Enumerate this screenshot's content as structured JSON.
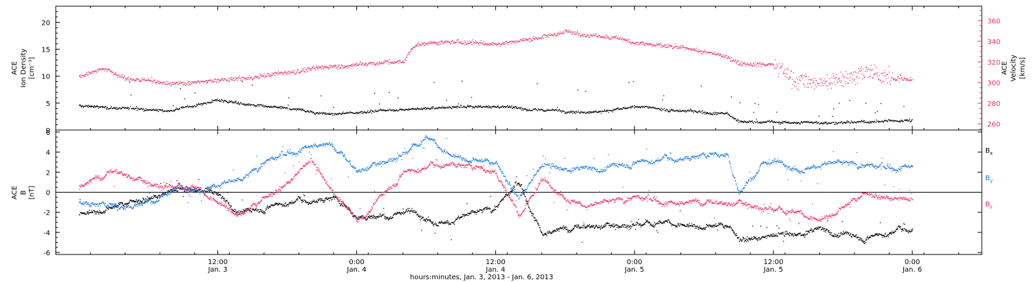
{
  "chart_data": [
    {
      "type": "scatter",
      "panel": "ion-density-velocity",
      "ylabel_left": [
        "ACE",
        "Ion Density",
        "[cm⁻³]"
      ],
      "ylabel_right": [
        "ACE",
        "Velocity",
        "[km/s]"
      ],
      "yticks_left": [
        "0",
        "5",
        "10",
        "15",
        "20"
      ],
      "ylim_left": [
        0,
        23
      ],
      "yticks_right": [
        "260",
        "280",
        "300",
        "320",
        "340",
        "360"
      ],
      "ylim_right": [
        254,
        374
      ],
      "left_axis_color": "#000000",
      "right_axis_color": "#e8325e",
      "series": [
        {
          "key": "density",
          "axis": "left",
          "color": "#000000",
          "x_hours": [
            0,
            4,
            8,
            12,
            14,
            18,
            22,
            24,
            26,
            28,
            32,
            36,
            40,
            44,
            48,
            52,
            56,
            57,
            60,
            64,
            68,
            72
          ],
          "values": [
            4.5,
            4.2,
            3.8,
            5.5,
            5.0,
            4.0,
            3.0,
            3.2,
            3.8,
            4.0,
            4.2,
            4.5,
            3.8,
            3.5,
            4.2,
            3.6,
            3.2,
            1.6,
            1.5,
            1.4,
            1.5,
            2.0
          ]
        },
        {
          "key": "velocity",
          "axis": "right",
          "color": "#e8325e",
          "x_hours": [
            0,
            2,
            4,
            8,
            12,
            16,
            20,
            22,
            24,
            26,
            28,
            29,
            31,
            34,
            36,
            40,
            42,
            44,
            48,
            52,
            56,
            57,
            60,
            62,
            64,
            68,
            72
          ],
          "values": [
            306,
            315,
            304,
            300,
            302,
            306,
            314,
            316,
            318,
            320,
            320,
            337,
            339,
            339,
            338,
            345,
            350,
            347,
            340,
            333,
            325,
            320,
            318,
            302,
            300,
            310,
            302
          ]
        }
      ]
    },
    {
      "type": "scatter",
      "panel": "magnetic-field",
      "ylabel_left": [
        "ACE",
        "B",
        "[nT]"
      ],
      "yticks_left": [
        "-6",
        "-4",
        "-2",
        "0",
        "2",
        "4",
        "6"
      ],
      "ylim_left": [
        -6.2,
        6.2
      ],
      "zero_line": true,
      "series": [
        {
          "name": "Bx",
          "label_main": "B",
          "label_sub": "x",
          "color": "#000000",
          "x_hours": [
            0,
            4,
            8,
            11,
            14,
            18,
            22,
            24,
            28,
            32,
            36,
            38,
            40,
            44,
            48,
            52,
            56,
            57,
            60,
            64,
            68,
            72
          ],
          "values": [
            -2.0,
            -1.0,
            0.0,
            0.3,
            -2.0,
            -1.0,
            -0.5,
            -2.5,
            -2.0,
            -3.0,
            -1.5,
            1.0,
            -4.0,
            -3.5,
            -3.0,
            -3.0,
            -3.2,
            -4.5,
            -4.5,
            -3.8,
            -4.5,
            -3.5
          ]
        },
        {
          "name": "By",
          "label_main": "B",
          "label_sub": "y",
          "color": "#1f7ae0",
          "x_hours": [
            0,
            4,
            8,
            10,
            14,
            16,
            20,
            22,
            24,
            28,
            30,
            32,
            36,
            38,
            40,
            44,
            48,
            52,
            56,
            57,
            59,
            62,
            66,
            70,
            72
          ],
          "values": [
            -1.0,
            -1.5,
            0.0,
            0.5,
            1.0,
            3.0,
            4.8,
            4.5,
            2.0,
            4.0,
            5.5,
            4.0,
            3.0,
            -0.5,
            2.5,
            2.2,
            3.0,
            3.5,
            3.8,
            0.0,
            3.0,
            2.5,
            2.8,
            2.5,
            2.8
          ]
        },
        {
          "name": "Bz",
          "label_main": "B",
          "label_sub": "z",
          "color": "#e8325e",
          "x_hours": [
            0,
            3,
            6,
            10,
            14,
            18,
            20,
            22,
            24,
            28,
            32,
            36,
            38,
            40,
            44,
            48,
            52,
            56,
            57,
            60,
            64,
            68,
            72
          ],
          "values": [
            0.5,
            2.0,
            1.0,
            0.5,
            -2.0,
            1.0,
            3.0,
            0.0,
            -3.0,
            2.0,
            3.0,
            2.0,
            -2.0,
            1.0,
            -1.5,
            -0.5,
            -1.0,
            -1.2,
            -1.0,
            -1.5,
            -2.5,
            0.0,
            -1.0
          ]
        }
      ]
    }
  ],
  "x_axis": {
    "ticks": [
      {
        "hour": 12,
        "line1": "12:00",
        "line2": "Jan. 3"
      },
      {
        "hour": 24,
        "line1": "0:00",
        "line2": "Jan. 4"
      },
      {
        "hour": 36,
        "line1": "12:00",
        "line2": "Jan. 4"
      },
      {
        "hour": 48,
        "line1": "0:00",
        "line2": "Jan. 5"
      },
      {
        "hour": 60,
        "line1": "12:00",
        "line2": "Jan. 5"
      },
      {
        "hour": 72,
        "line1": "0:00",
        "line2": "Jan. 6"
      }
    ],
    "xlim_hours": [
      -2,
      78
    ],
    "title": "hours:minutes, Jan.  3, 2013 - Jan.  6, 2013"
  }
}
